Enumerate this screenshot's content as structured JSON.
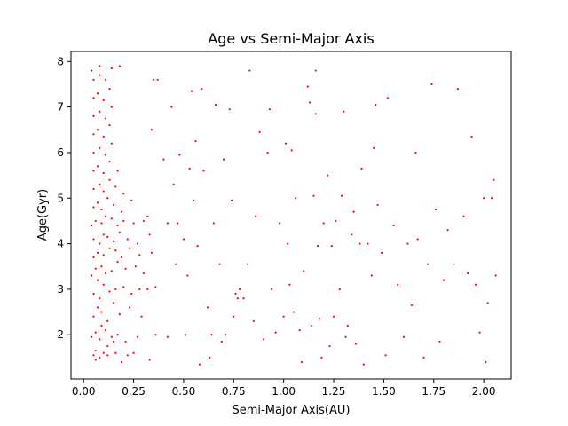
{
  "chart_data": {
    "type": "scatter",
    "title": "Age vs Semi-Major Axis",
    "xlabel": "Semi-Major Axis(AU)",
    "ylabel": "Age(Gyr)",
    "xlim": [
      -0.063,
      2.137
    ],
    "ylim": [
      1.03,
      8.22
    ],
    "xticks": [
      0.0,
      0.25,
      0.5,
      0.75,
      1.0,
      1.25,
      1.5,
      1.75,
      2.0
    ],
    "xtick_labels": [
      "0.00",
      "0.25",
      "0.50",
      "0.75",
      "1.00",
      "1.25",
      "1.50",
      "1.75",
      "2.00"
    ],
    "yticks": [
      2,
      3,
      4,
      5,
      6,
      7,
      8
    ],
    "ytick_labels": [
      "2",
      "3",
      "4",
      "5",
      "6",
      "7",
      "8"
    ],
    "grid": false,
    "marker_color": "#ff0000",
    "series": [
      {
        "points": [
          [
            0.05,
            1.55
          ],
          [
            0.06,
            1.65
          ],
          [
            0.08,
            1.5
          ],
          [
            0.1,
            1.6
          ],
          [
            0.12,
            1.55
          ],
          [
            0.16,
            1.6
          ],
          [
            0.19,
            1.4
          ],
          [
            0.22,
            1.55
          ],
          [
            0.25,
            1.6
          ],
          [
            0.33,
            1.45
          ],
          [
            0.04,
            1.95
          ],
          [
            0.06,
            2.05
          ],
          [
            0.08,
            1.9
          ],
          [
            0.11,
            2.1
          ],
          [
            0.14,
            1.95
          ],
          [
            0.17,
            2.0
          ],
          [
            0.21,
            1.85
          ],
          [
            0.27,
            1.95
          ],
          [
            0.36,
            2.0
          ],
          [
            0.42,
            1.95
          ],
          [
            0.05,
            2.4
          ],
          [
            0.07,
            2.6
          ],
          [
            0.09,
            2.5
          ],
          [
            0.12,
            2.3
          ],
          [
            0.15,
            2.7
          ],
          [
            0.18,
            2.45
          ],
          [
            0.23,
            2.6
          ],
          [
            0.29,
            2.4
          ],
          [
            0.05,
            2.9
          ],
          [
            0.08,
            2.8
          ],
          [
            0.1,
            3.1
          ],
          [
            0.13,
            2.95
          ],
          [
            0.16,
            3.0
          ],
          [
            0.2,
            3.05
          ],
          [
            0.24,
            2.9
          ],
          [
            0.28,
            3.0
          ],
          [
            0.32,
            3.0
          ],
          [
            0.36,
            3.05
          ],
          [
            0.04,
            3.3
          ],
          [
            0.06,
            3.45
          ],
          [
            0.09,
            3.5
          ],
          [
            0.11,
            3.35
          ],
          [
            0.14,
            3.4
          ],
          [
            0.17,
            3.6
          ],
          [
            0.21,
            3.45
          ],
          [
            0.26,
            3.5
          ],
          [
            0.3,
            3.35
          ],
          [
            0.05,
            3.7
          ],
          [
            0.07,
            3.8
          ],
          [
            0.1,
            3.75
          ],
          [
            0.13,
            3.9
          ],
          [
            0.16,
            3.85
          ],
          [
            0.19,
            3.7
          ],
          [
            0.23,
            3.9
          ],
          [
            0.28,
            3.75
          ],
          [
            0.34,
            3.8
          ],
          [
            0.05,
            4.1
          ],
          [
            0.08,
            4.0
          ],
          [
            0.1,
            4.2
          ],
          [
            0.12,
            4.15
          ],
          [
            0.15,
            4.05
          ],
          [
            0.18,
            4.25
          ],
          [
            0.22,
            4.1
          ],
          [
            0.27,
            4.0
          ],
          [
            0.33,
            4.2
          ],
          [
            0.04,
            4.4
          ],
          [
            0.06,
            4.5
          ],
          [
            0.09,
            4.45
          ],
          [
            0.11,
            4.6
          ],
          [
            0.14,
            4.55
          ],
          [
            0.17,
            4.4
          ],
          [
            0.2,
            4.5
          ],
          [
            0.25,
            4.45
          ],
          [
            0.3,
            4.5
          ],
          [
            0.05,
            4.8
          ],
          [
            0.07,
            4.9
          ],
          [
            0.09,
            4.75
          ],
          [
            0.12,
            5.0
          ],
          [
            0.15,
            4.85
          ],
          [
            0.19,
            4.7
          ],
          [
            0.24,
            4.95
          ],
          [
            0.05,
            5.2
          ],
          [
            0.08,
            5.3
          ],
          [
            0.1,
            5.15
          ],
          [
            0.13,
            5.4
          ],
          [
            0.16,
            5.25
          ],
          [
            0.2,
            5.1
          ],
          [
            0.05,
            5.6
          ],
          [
            0.07,
            5.7
          ],
          [
            0.1,
            5.55
          ],
          [
            0.13,
            5.8
          ],
          [
            0.17,
            5.6
          ],
          [
            0.05,
            6.0
          ],
          [
            0.08,
            6.1
          ],
          [
            0.11,
            5.95
          ],
          [
            0.14,
            6.2
          ],
          [
            0.05,
            6.4
          ],
          [
            0.07,
            6.5
          ],
          [
            0.1,
            6.35
          ],
          [
            0.13,
            6.6
          ],
          [
            0.05,
            6.8
          ],
          [
            0.08,
            6.9
          ],
          [
            0.11,
            6.75
          ],
          [
            0.14,
            7.0
          ],
          [
            0.05,
            7.2
          ],
          [
            0.07,
            7.3
          ],
          [
            0.1,
            7.15
          ],
          [
            0.13,
            7.4
          ],
          [
            0.05,
            7.6
          ],
          [
            0.08,
            7.7
          ],
          [
            0.11,
            7.6
          ],
          [
            0.14,
            7.85
          ],
          [
            0.18,
            7.9
          ],
          [
            0.08,
            7.9
          ],
          [
            0.04,
            7.8
          ],
          [
            0.07,
            3.2
          ],
          [
            0.09,
            2.2
          ],
          [
            0.12,
            1.75
          ],
          [
            0.06,
            1.45
          ],
          [
            0.15,
            1.85
          ],
          [
            0.32,
            4.6
          ],
          [
            0.34,
            6.5
          ],
          [
            0.35,
            7.6
          ],
          [
            0.37,
            7.6
          ],
          [
            0.4,
            5.85
          ],
          [
            0.42,
            4.45
          ],
          [
            0.44,
            7.0
          ],
          [
            0.46,
            3.55
          ],
          [
            0.47,
            4.45
          ],
          [
            0.48,
            5.95
          ],
          [
            0.5,
            4.1
          ],
          [
            0.51,
            2.0
          ],
          [
            0.52,
            3.3
          ],
          [
            0.54,
            7.35
          ],
          [
            0.55,
            4.95
          ],
          [
            0.56,
            6.25
          ],
          [
            0.57,
            3.95
          ],
          [
            0.58,
            1.35
          ],
          [
            0.6,
            5.6
          ],
          [
            0.62,
            2.6
          ],
          [
            0.63,
            1.5
          ],
          [
            0.64,
            2.0
          ],
          [
            0.65,
            4.45
          ],
          [
            0.66,
            7.05
          ],
          [
            0.68,
            3.55
          ],
          [
            0.7,
            5.85
          ],
          [
            0.71,
            2.0
          ],
          [
            0.73,
            6.95
          ],
          [
            0.74,
            4.95
          ],
          [
            0.75,
            2.4
          ],
          [
            0.77,
            2.8
          ],
          [
            0.78,
            3.0
          ],
          [
            0.8,
            2.8
          ],
          [
            0.82,
            3.55
          ],
          [
            0.83,
            7.8
          ],
          [
            0.85,
            2.3
          ],
          [
            0.86,
            4.6
          ],
          [
            0.88,
            6.45
          ],
          [
            0.9,
            1.9
          ],
          [
            0.92,
            6.0
          ],
          [
            0.94,
            3.0
          ],
          [
            0.96,
            2.05
          ],
          [
            0.98,
            4.45
          ],
          [
            1.0,
            2.4
          ],
          [
            1.01,
            6.2
          ],
          [
            1.02,
            4.0
          ],
          [
            1.03,
            3.1
          ],
          [
            1.05,
            2.5
          ],
          [
            1.06,
            5.0
          ],
          [
            1.08,
            2.1
          ],
          [
            1.09,
            1.4
          ],
          [
            1.1,
            3.4
          ],
          [
            1.12,
            7.45
          ],
          [
            1.14,
            2.2
          ],
          [
            1.15,
            5.05
          ],
          [
            1.16,
            6.85
          ],
          [
            1.17,
            3.95
          ],
          [
            1.18,
            2.35
          ],
          [
            1.19,
            1.5
          ],
          [
            1.2,
            4.45
          ],
          [
            1.22,
            5.5
          ],
          [
            1.23,
            1.75
          ],
          [
            1.24,
            3.95
          ],
          [
            1.25,
            2.4
          ],
          [
            1.26,
            4.5
          ],
          [
            1.28,
            3.0
          ],
          [
            1.29,
            5.05
          ],
          [
            1.3,
            6.9
          ],
          [
            1.31,
            1.95
          ],
          [
            1.32,
            2.2
          ],
          [
            1.34,
            4.2
          ],
          [
            1.35,
            4.7
          ],
          [
            1.36,
            1.8
          ],
          [
            1.38,
            4.0
          ],
          [
            1.39,
            5.65
          ],
          [
            1.4,
            1.35
          ],
          [
            1.42,
            4.0
          ],
          [
            1.45,
            6.1
          ],
          [
            1.47,
            4.85
          ],
          [
            1.49,
            3.8
          ],
          [
            1.51,
            1.55
          ],
          [
            1.52,
            7.2
          ],
          [
            1.55,
            4.4
          ],
          [
            1.57,
            3.1
          ],
          [
            1.6,
            1.95
          ],
          [
            1.62,
            4.0
          ],
          [
            1.64,
            2.65
          ],
          [
            1.66,
            6.0
          ],
          [
            1.67,
            4.1
          ],
          [
            1.7,
            1.5
          ],
          [
            1.72,
            3.55
          ],
          [
            1.74,
            7.5
          ],
          [
            1.76,
            4.75
          ],
          [
            1.78,
            1.85
          ],
          [
            1.8,
            3.2
          ],
          [
            1.82,
            4.3
          ],
          [
            1.85,
            3.55
          ],
          [
            1.87,
            7.4
          ],
          [
            1.9,
            4.6
          ],
          [
            1.92,
            3.35
          ],
          [
            1.94,
            6.35
          ],
          [
            1.96,
            3.1
          ],
          [
            1.98,
            2.05
          ],
          [
            2.0,
            5.0
          ],
          [
            2.01,
            1.4
          ],
          [
            2.02,
            2.7
          ],
          [
            2.04,
            5.0
          ],
          [
            2.05,
            5.4
          ],
          [
            2.06,
            3.3
          ],
          [
            1.44,
            3.3
          ],
          [
            1.46,
            7.05
          ],
          [
            1.13,
            7.1
          ],
          [
            1.16,
            7.8
          ],
          [
            1.04,
            6.05
          ],
          [
            0.93,
            6.95
          ],
          [
            0.76,
            2.9
          ],
          [
            0.69,
            1.85
          ],
          [
            0.59,
            7.4
          ],
          [
            0.53,
            5.65
          ],
          [
            0.45,
            5.3
          ]
        ]
      }
    ]
  }
}
